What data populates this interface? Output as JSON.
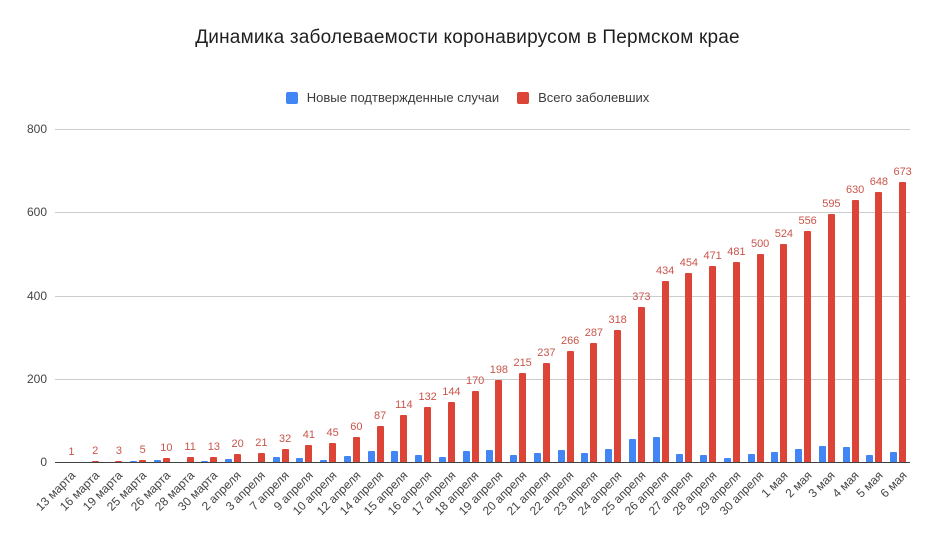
{
  "colors": {
    "new_cases": "#4285F4",
    "total_cases": "#DB4437",
    "annotation": "#C9554B",
    "gridline": "#CCCCCC",
    "baseline": "#424242",
    "axis_text": "#444444",
    "legend_text": "#3C3C3C",
    "title_text": "#1F1F1F",
    "background": "#FFFFFF"
  },
  "chart_data": {
    "type": "bar",
    "title": "Динамика заболеваемости коронавирусом в Пермском крае",
    "legend_position": "top",
    "grid": true,
    "ylim": [
      0,
      800
    ],
    "yticks": [
      0,
      200,
      400,
      600,
      800
    ],
    "xlabel": "",
    "ylabel": "",
    "categories": [
      "13 марта",
      "16 марта",
      "19 марта",
      "25 марта",
      "26 марта",
      "28 марта",
      "30 марта",
      "2 апреля",
      "3 апреля",
      "7 апреля",
      "9 апреля",
      "10 апреля",
      "12 апреля",
      "14 апреля",
      "15 апреля",
      "16 апреля",
      "17 апреля",
      "18 апреля",
      "19 апреля",
      "20 апреля",
      "21 апреля",
      "22 апреля",
      "23 апреля",
      "24 апреля",
      "25 апреля",
      "26 апреля",
      "27 апреля",
      "28 апреля",
      "29 апреля",
      "30 апреля",
      "1 мая",
      "2 мая",
      "3 мая",
      "4 мая",
      "5 мая",
      "6 мая"
    ],
    "series": [
      {
        "name": "Новые подтвержденные случаи",
        "key": "new-cases",
        "color": "#4285F4",
        "data_labels": false,
        "values": [
          1,
          1,
          1,
          2,
          5,
          1,
          2,
          7,
          1,
          11,
          9,
          4,
          15,
          27,
          27,
          18,
          12,
          26,
          28,
          17,
          22,
          29,
          21,
          31,
          55,
          61,
          20,
          17,
          10,
          19,
          24,
          32,
          39,
          35,
          18,
          25
        ]
      },
      {
        "name": "Всего заболевших",
        "key": "total-cases",
        "color": "#DB4437",
        "data_labels": true,
        "values": [
          1,
          2,
          3,
          5,
          10,
          11,
          13,
          20,
          21,
          32,
          41,
          45,
          60,
          87,
          114,
          132,
          144,
          170,
          198,
          215,
          237,
          266,
          287,
          318,
          373,
          434,
          454,
          471,
          481,
          500,
          524,
          556,
          595,
          630,
          648,
          673
        ]
      }
    ]
  }
}
